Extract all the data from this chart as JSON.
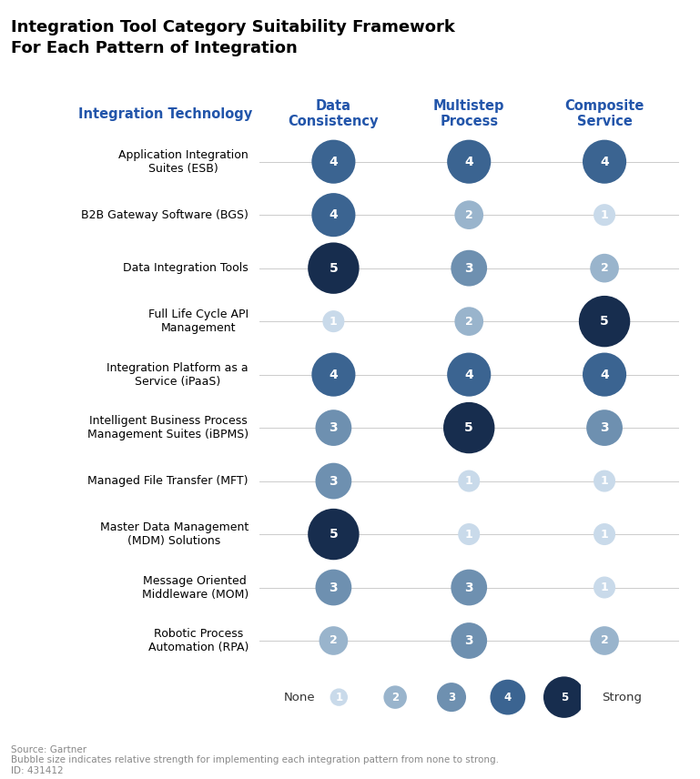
{
  "title": "Integration Tool Category Suitability Framework\nFor Each Pattern of Integration",
  "title_fontsize": 13,
  "col_header_color": "#2255AA",
  "row_label_color": "#000000",
  "col_headers": [
    "Data\nConsistency",
    "Multistep\nProcess",
    "Composite\nService"
  ],
  "row_labels": [
    "Application Integration\nSuites (ESB)",
    "B2B Gateway Software (BGS)",
    "Data Integration Tools",
    "Full Life Cycle API\nManagement",
    "Integration Platform as a\nService (iPaaS)",
    "Intelligent Business Process\nManagement Suites (iBPMS)",
    "Managed File Transfer (MFT)",
    "Master Data Management\n(MDM) Solutions",
    "Message Oriented\nMiddleware (MOM)",
    "Robotic Process\nAutomation (RPA)"
  ],
  "data": [
    [
      4,
      4,
      4
    ],
    [
      4,
      2,
      1
    ],
    [
      5,
      3,
      2
    ],
    [
      1,
      2,
      5
    ],
    [
      4,
      4,
      4
    ],
    [
      3,
      5,
      3
    ],
    [
      3,
      1,
      1
    ],
    [
      5,
      1,
      1
    ],
    [
      3,
      3,
      1
    ],
    [
      2,
      3,
      2
    ]
  ],
  "color_map": {
    "1": "#c9daea",
    "2": "#99b4cc",
    "3": "#6e90b0",
    "4": "#3b6491",
    "5": "#172d4e"
  },
  "size_map": {
    "1": 300,
    "2": 520,
    "3": 820,
    "4": 1200,
    "5": 1650
  },
  "source_text": "Source: Gartner\nBubble size indicates relative strength for implementing each integration pattern from none to strong.\nID: 431412",
  "background_color": "#ffffff",
  "grid_color": "#cccccc"
}
